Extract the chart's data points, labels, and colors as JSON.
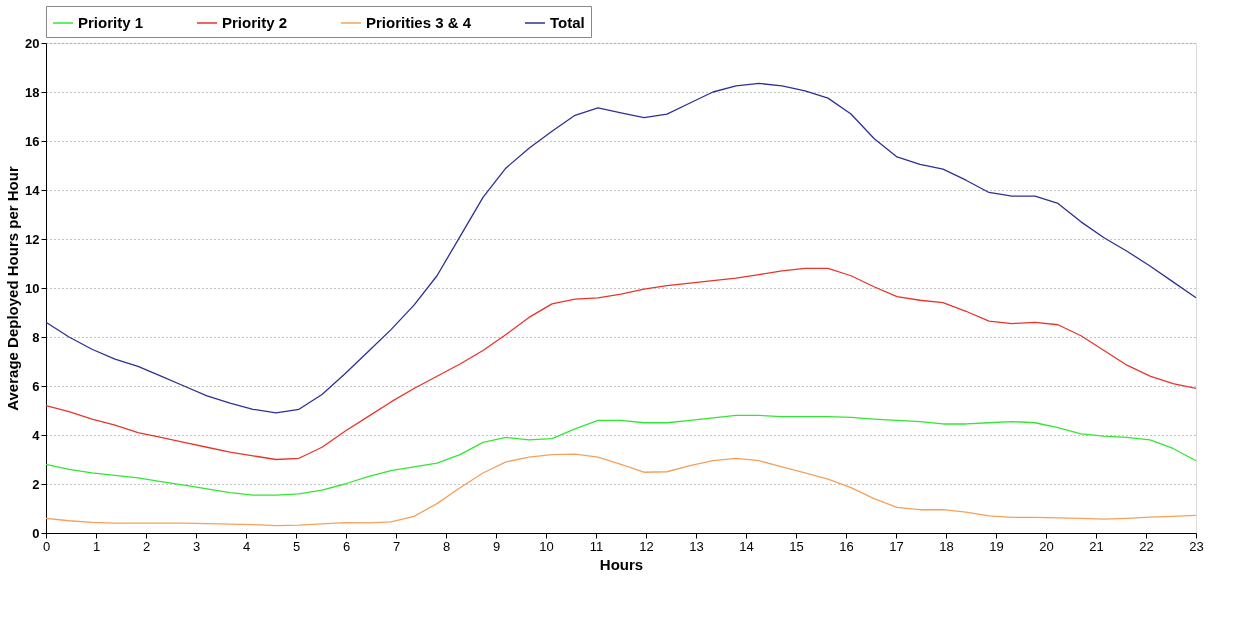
{
  "chart_data": {
    "type": "line",
    "xlabel": "Hours",
    "ylabel": "Average Deployed Hours per Hour",
    "x": [
      0,
      0.46,
      0.92,
      1.38,
      1.84,
      2.3,
      2.76,
      3.22,
      3.68,
      4.14,
      4.6,
      5.06,
      5.52,
      5.98,
      6.44,
      6.9,
      7.36,
      7.82,
      8.28,
      8.74,
      9.2,
      9.66,
      10.12,
      10.58,
      11.04,
      11.5,
      11.96,
      12.42,
      12.88,
      13.34,
      13.8,
      14.26,
      14.72,
      15.18,
      15.64,
      16.1,
      16.56,
      17.02,
      17.48,
      17.94,
      18.4,
      18.86,
      19.32,
      19.78,
      20.24,
      20.7,
      21.16,
      21.62,
      22.08,
      22.54,
      23.0
    ],
    "series": [
      {
        "name": "Priority 1",
        "color": "#33e633",
        "values": [
          2.8,
          2.6,
          2.45,
          2.35,
          2.25,
          2.1,
          1.95,
          1.8,
          1.65,
          1.55,
          1.55,
          1.6,
          1.75,
          2.0,
          2.3,
          2.55,
          2.7,
          2.85,
          3.2,
          3.7,
          3.9,
          3.8,
          3.85,
          4.25,
          4.6,
          4.6,
          4.5,
          4.5,
          4.6,
          4.7,
          4.8,
          4.8,
          4.75,
          4.75,
          4.75,
          4.72,
          4.65,
          4.6,
          4.55,
          4.45,
          4.45,
          4.5,
          4.55,
          4.5,
          4.3,
          4.05,
          3.95,
          3.9,
          3.8,
          3.45,
          2.95
        ]
      },
      {
        "name": "Priority 2",
        "color": "#e8352a",
        "values": [
          5.2,
          4.95,
          4.65,
          4.4,
          4.1,
          3.9,
          3.7,
          3.5,
          3.3,
          3.15,
          3.0,
          3.05,
          3.5,
          4.15,
          4.75,
          5.35,
          5.9,
          6.4,
          6.9,
          7.45,
          8.1,
          8.8,
          9.35,
          9.55,
          9.6,
          9.75,
          9.95,
          10.1,
          10.2,
          10.3,
          10.4,
          10.55,
          10.7,
          10.8,
          10.8,
          10.5,
          10.05,
          9.65,
          9.5,
          9.4,
          9.05,
          8.65,
          8.55,
          8.6,
          8.5,
          8.05,
          7.45,
          6.85,
          6.4,
          6.1,
          5.9
        ]
      },
      {
        "name": "Priorities 3 & 4",
        "color": "#f5a05a",
        "values": [
          0.6,
          0.5,
          0.43,
          0.4,
          0.4,
          0.4,
          0.4,
          0.38,
          0.36,
          0.34,
          0.3,
          0.32,
          0.37,
          0.42,
          0.41,
          0.45,
          0.68,
          1.2,
          1.85,
          2.45,
          2.9,
          3.1,
          3.2,
          3.22,
          3.1,
          2.8,
          2.48,
          2.5,
          2.75,
          2.95,
          3.05,
          2.95,
          2.7,
          2.45,
          2.2,
          1.85,
          1.4,
          1.05,
          0.95,
          0.95,
          0.85,
          0.7,
          0.64,
          0.64,
          0.62,
          0.6,
          0.57,
          0.6,
          0.65,
          0.68,
          0.72
        ]
      },
      {
        "name": "Total",
        "color": "#2e3192",
        "values": [
          8.6,
          8.0,
          7.5,
          7.1,
          6.8,
          6.4,
          6.0,
          5.6,
          5.3,
          5.05,
          4.9,
          5.05,
          5.65,
          6.5,
          7.4,
          8.3,
          9.3,
          10.5,
          12.1,
          13.7,
          14.9,
          15.7,
          16.4,
          17.05,
          17.35,
          17.15,
          16.95,
          17.1,
          17.55,
          18.0,
          18.25,
          18.35,
          18.25,
          18.05,
          17.75,
          17.1,
          16.1,
          15.35,
          15.05,
          14.85,
          14.4,
          13.9,
          13.75,
          13.75,
          13.45,
          12.7,
          12.05,
          11.5,
          10.9,
          10.25,
          9.6
        ]
      }
    ],
    "xlim": [
      0,
      23
    ],
    "xticks": [
      0,
      1,
      2,
      3,
      4,
      5,
      6,
      7,
      8,
      9,
      10,
      11,
      12,
      13,
      14,
      15,
      16,
      17,
      18,
      19,
      20,
      21,
      22,
      23
    ],
    "ylim": [
      0,
      20
    ],
    "yticks": [
      0,
      2,
      4,
      6,
      8,
      10,
      12,
      14,
      16,
      18,
      20
    ],
    "grid": "y",
    "legend": "top",
    "marker": "none",
    "line_style": "solid"
  }
}
